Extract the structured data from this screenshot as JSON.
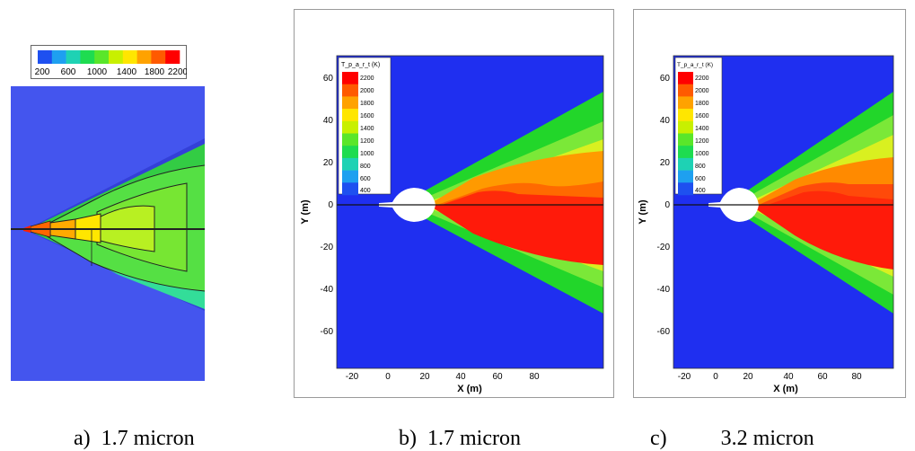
{
  "panels": [
    {
      "id": "a",
      "caption_letter": "a)",
      "caption_text": "1.7 micron",
      "colorbar_ticks": [
        "200",
        "600",
        "1000",
        "1400",
        "1800",
        "2200"
      ]
    },
    {
      "id": "b",
      "caption_letter": "b)",
      "caption_text": "1.7 micron",
      "legend_title": "T_p_a_r_t (K)",
      "legend_levels": [
        "2200",
        "2000",
        "1800",
        "1600",
        "1400",
        "1200",
        "1000",
        "800",
        "600",
        "400"
      ],
      "xlabel": "X (m)",
      "ylabel": "Y (m)",
      "x_ticks": [
        "-20",
        "0",
        "20",
        "40",
        "60",
        "80"
      ],
      "y_ticks": [
        "60",
        "40",
        "20",
        "0",
        "-20",
        "-40",
        "-60"
      ]
    },
    {
      "id": "c",
      "caption_letter": "c)",
      "caption_text": "3.2 micron",
      "legend_title": "T_p_a_r_t (K)",
      "legend_levels": [
        "2200",
        "2000",
        "1800",
        "1600",
        "1400",
        "1200",
        "1000",
        "800",
        "600",
        "400"
      ],
      "xlabel": "X (m)",
      "ylabel": "Y (m)",
      "x_ticks": [
        "-20",
        "0",
        "20",
        "40",
        "60",
        "80"
      ],
      "y_ticks": [
        "60",
        "40",
        "20",
        "0",
        "-20",
        "-40",
        "-60"
      ]
    }
  ],
  "colors": {
    "background_blue": "#1f2ff0",
    "panel_a_blue": "#4455ee",
    "plume_green": "#22d62a",
    "plume_red": "#ff1a0a",
    "plume_orange": "#ffa000",
    "legend_scale": [
      "#ff0000",
      "#ff5a00",
      "#ffa200",
      "#ffe600",
      "#c8f000",
      "#5ae62a",
      "#1edc50",
      "#1ed2b4",
      "#1ea0f0",
      "#1e50f0"
    ]
  }
}
